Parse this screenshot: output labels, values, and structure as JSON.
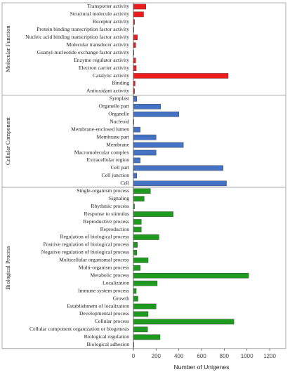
{
  "chart_data": {
    "type": "bar",
    "orientation": "horizontal",
    "xlabel": "Number of Unigenes",
    "xlim": [
      0,
      1200
    ],
    "xticks": [
      0,
      200,
      400,
      600,
      800,
      1000,
      1200
    ],
    "grid": false,
    "groups": [
      {
        "name": "Molecular Function",
        "color": "#ee1c1c",
        "categories": [
          "Transporter activity",
          "Structural molecule activity",
          "Receptor activity",
          "Protein binding transcription factor activity",
          "Nucleic acid binding transcription factor activity",
          "Molecular transducer activity",
          "Guanyl-nucleotide exchange factor activity",
          "Enzyme regulator activity",
          "Electron carrier activity",
          "Catalytic activity",
          "Binding",
          "Antioxidant activity"
        ],
        "values": [
          110,
          90,
          10,
          3,
          35,
          20,
          5,
          20,
          25,
          835,
          15,
          10
        ]
      },
      {
        "name": "Cellular Component",
        "color": "#4472c4",
        "categories": [
          "Symplast",
          "Organelle part",
          "Organelle",
          "Nucleoid",
          "Membrane-enclosed lumen",
          "Membrane part",
          "Membrane",
          "Macromolecular complex",
          "Extracellular region",
          "Cell part",
          "Cell junction",
          "Cell"
        ],
        "values": [
          30,
          240,
          400,
          5,
          60,
          200,
          440,
          200,
          60,
          790,
          30,
          820
        ]
      },
      {
        "name": "Biological Process",
        "color": "#1e9b1e",
        "categories": [
          "Single-organism process",
          "Signaling",
          "Rhythmic process",
          "Response to stimulus",
          "Reproductive process",
          "Reproduction",
          "Regulation of biological process",
          "Positive regulation of biological process",
          "Negative regulation of biological process",
          "Multicellular organismal process",
          "Multi-organism process",
          "Metabolic process",
          "Localization",
          "Immune system process",
          "Growth",
          "Establishment of localization",
          "Developmental process",
          "Cellular process",
          "Cellular component organization or biogenesis",
          "Biological regulation",
          "Biological adhesion"
        ],
        "values": [
          150,
          95,
          10,
          350,
          70,
          70,
          225,
          35,
          30,
          130,
          60,
          1015,
          210,
          25,
          40,
          200,
          130,
          885,
          125,
          235,
          5
        ]
      }
    ]
  }
}
